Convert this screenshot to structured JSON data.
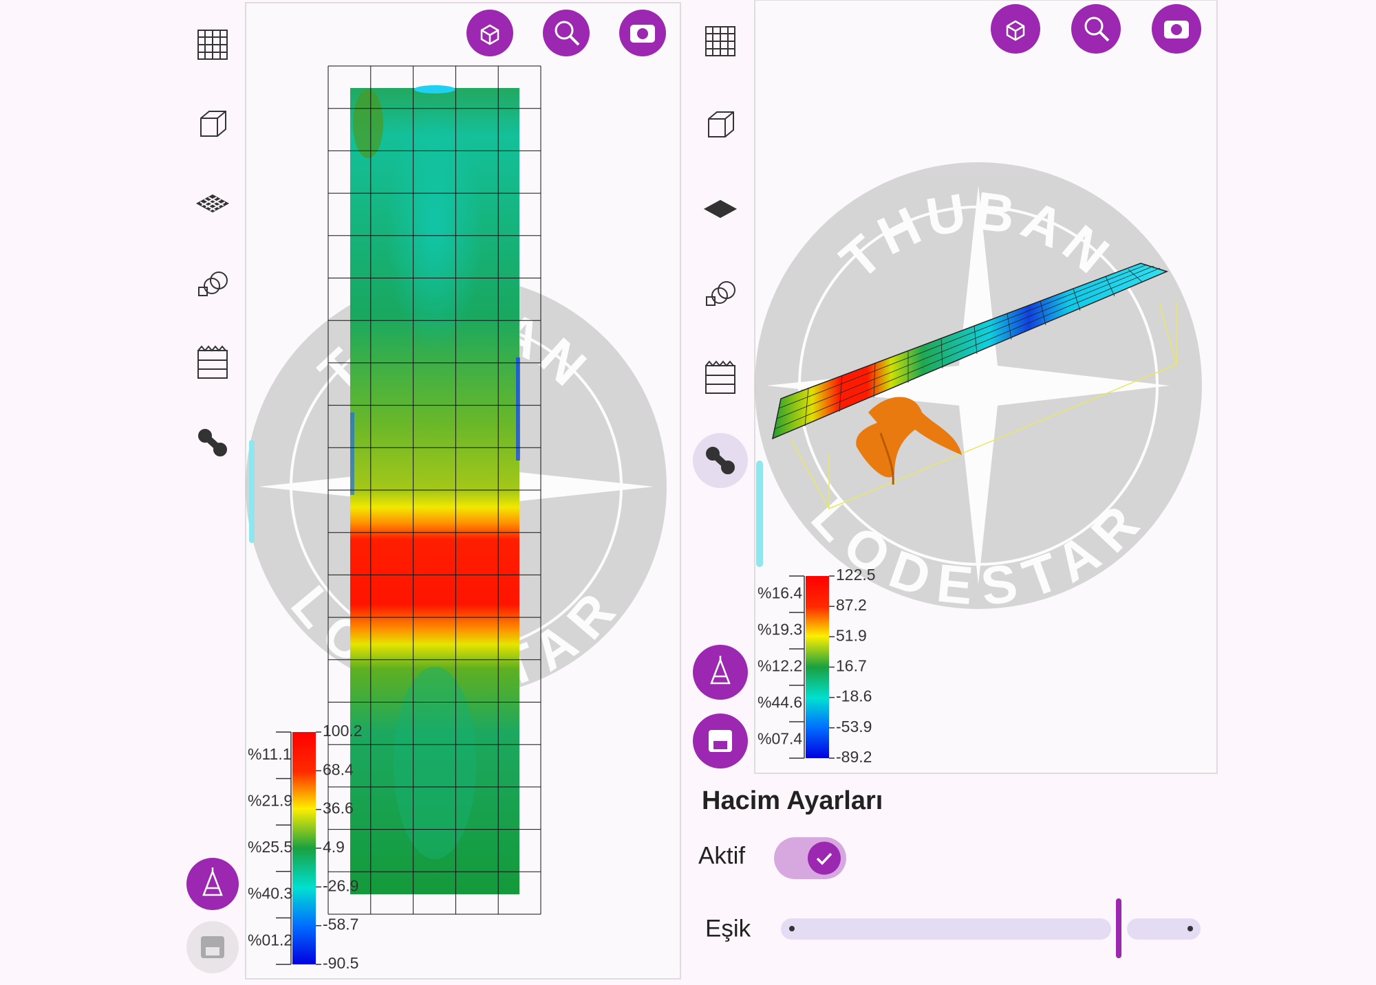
{
  "left_view": {
    "watermark": {
      "top": "THUBAN",
      "bottom": "LODESTAR"
    },
    "legend": {
      "values": [
        "100.2",
        "68.4",
        "36.6",
        "4.9",
        "-26.9",
        "-58.7",
        "-90.5"
      ],
      "percents": [
        "%11.1",
        "%21.9",
        "%25.5",
        "%40.3",
        "%01.2"
      ]
    }
  },
  "right_view": {
    "watermark": {
      "top": "THUBAN",
      "bottom": "LODESTAR"
    },
    "legend": {
      "values": [
        "122.5",
        "87.2",
        "51.9",
        "16.7",
        "-18.6",
        "-53.9",
        "-89.2"
      ],
      "percents": [
        "%16.4",
        "%19.3",
        "%12.2",
        "%44.6",
        "%07.4"
      ]
    }
  },
  "settings": {
    "title": "Hacim Ayarları",
    "active": {
      "label": "Aktif",
      "checked": true
    },
    "threshold": {
      "label": "Eşik"
    }
  }
}
